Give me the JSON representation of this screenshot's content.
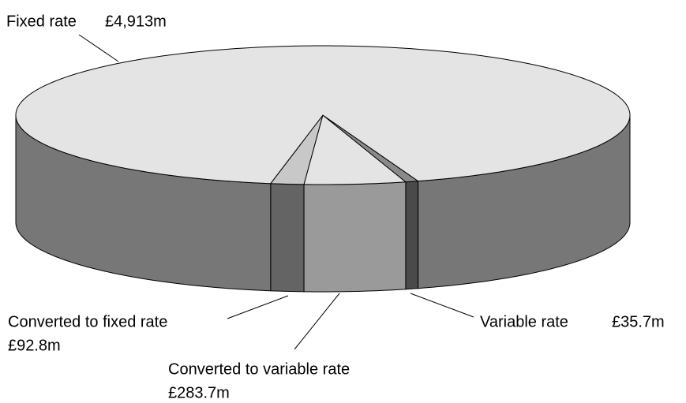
{
  "chart_data": {
    "type": "pie3d",
    "categories": [
      "Converted to fixed rate",
      "Converted to variable rate",
      "Variable rate",
      "Fixed rate"
    ],
    "values": [
      92.8,
      283.7,
      35.7,
      4913
    ],
    "value_labels": [
      "£92.8m",
      "£283.7m",
      "£35.7m",
      "£4,913m"
    ],
    "colors": [
      "#c8c8c8",
      "#e4e4e4",
      "#8a8a8a",
      "#e4e4e4"
    ],
    "side_colors": [
      "#646464",
      "#9a9a9a",
      "#4a4a4a",
      "#777777"
    ]
  }
}
